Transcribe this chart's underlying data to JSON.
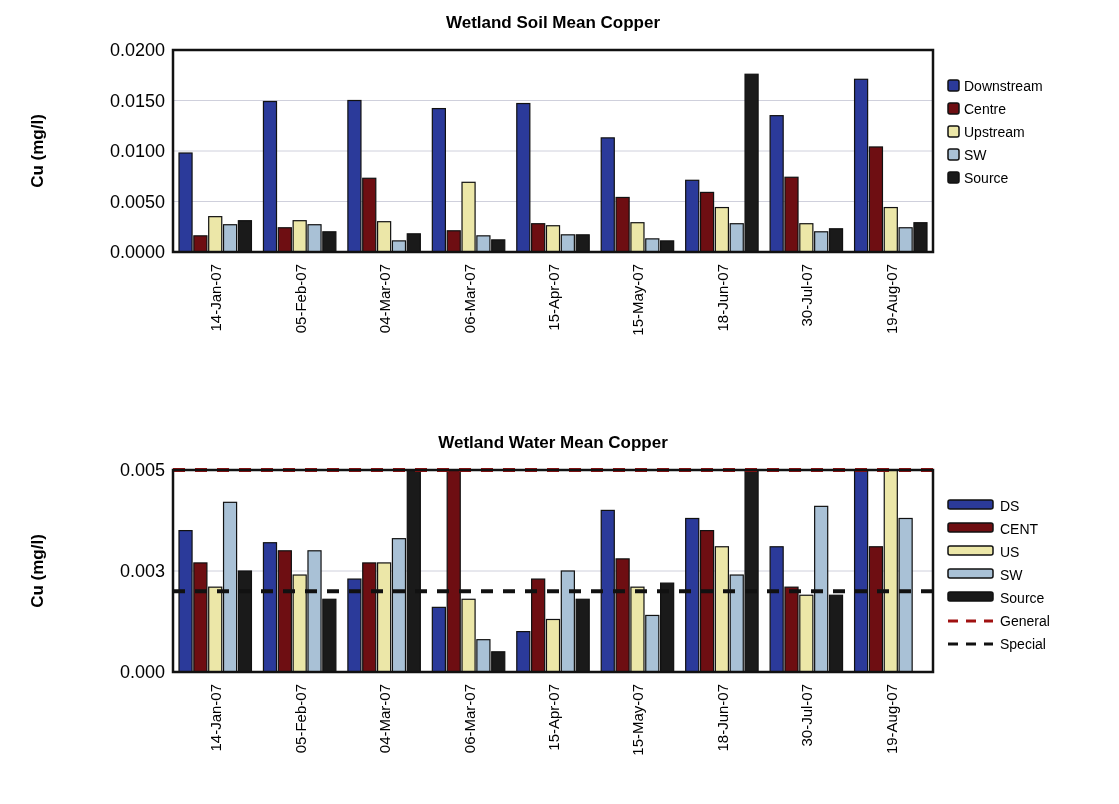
{
  "chart_data": [
    {
      "type": "bar",
      "title": "Wetland Soil Mean Copper",
      "ylabel": "Cu (mg/l)",
      "categories": [
        "14-Jan-07",
        "05-Feb-07",
        "04-Mar-07",
        "06-Mar-07",
        "15-Apr-07",
        "15-May-07",
        "18-Jun-07",
        "30-Jul-07",
        "19-Aug-07"
      ],
      "series": [
        {
          "name": "Downstream",
          "color": "#2b3a9a",
          "values": [
            0.0098,
            0.0149,
            0.015,
            0.0142,
            0.0147,
            0.0113,
            0.0071,
            0.0135,
            0.0171
          ]
        },
        {
          "name": "Centre",
          "color": "#6e0e12",
          "values": [
            0.0016,
            0.0024,
            0.0073,
            0.0021,
            0.0028,
            0.0054,
            0.0059,
            0.0074,
            0.0104
          ]
        },
        {
          "name": "Upstream",
          "color": "#ece7a8",
          "values": [
            0.0035,
            0.0031,
            0.003,
            0.0069,
            0.0026,
            0.0029,
            0.0044,
            0.0028,
            0.0044
          ]
        },
        {
          "name": "SW",
          "color": "#a9c1d6",
          "values": [
            0.0027,
            0.0027,
            0.0011,
            0.0016,
            0.0017,
            0.0013,
            0.0028,
            0.002,
            0.0024
          ]
        },
        {
          "name": "Source",
          "color": "#1a1a1a",
          "values": [
            0.0031,
            0.002,
            0.0018,
            0.0012,
            0.0017,
            0.0011,
            0.0176,
            0.0023,
            0.0029
          ]
        }
      ],
      "ylim": [
        0,
        0.02
      ],
      "yticks": [
        {
          "value": 0,
          "label": "0.0000"
        },
        {
          "value": 0.005,
          "label": "0.0050"
        },
        {
          "value": 0.01,
          "label": "0.0100"
        },
        {
          "value": 0.015,
          "label": "0.0150"
        },
        {
          "value": 0.02,
          "label": "0.0200"
        }
      ],
      "grid": "y",
      "legend": "right"
    },
    {
      "type": "bar",
      "title": "Wetland Water Mean Copper",
      "ylabel": "Cu (mg/l)",
      "categories": [
        "14-Jan-07",
        "05-Feb-07",
        "04-Mar-07",
        "06-Mar-07",
        "15-Apr-07",
        "15-May-07",
        "18-Jun-07",
        "30-Jul-07",
        "19-Aug-07"
      ],
      "series": [
        {
          "name": "DS",
          "color": "#2b3a9a",
          "values": [
            0.0035,
            0.0032,
            0.0023,
            0.0016,
            0.001,
            0.004,
            0.0038,
            0.0031,
            0.005
          ]
        },
        {
          "name": "CENT",
          "color": "#6e0e12",
          "values": [
            0.0027,
            0.003,
            0.0027,
            0.005,
            0.0023,
            0.0028,
            0.0035,
            0.0021,
            0.0031
          ]
        },
        {
          "name": "US",
          "color": "#ece7a8",
          "values": [
            0.0021,
            0.0024,
            0.0027,
            0.0018,
            0.0013,
            0.0021,
            0.0031,
            0.0019,
            0.005
          ]
        },
        {
          "name": "SW",
          "color": "#a9c1d6",
          "values": [
            0.0042,
            0.003,
            0.0033,
            0.0008,
            0.0025,
            0.0014,
            0.0024,
            0.0041,
            0.0038
          ]
        },
        {
          "name": "Source",
          "color": "#1a1a1a",
          "values": [
            0.0025,
            0.0018,
            0.005,
            0.0005,
            0.0018,
            0.0022,
            0.005,
            0.0019,
            null
          ]
        }
      ],
      "ref_lines": [
        {
          "axis": "y",
          "value": 0.005,
          "label": "General",
          "color": "#a01010",
          "line_style": "dashed"
        },
        {
          "axis": "y",
          "value": 0.002,
          "label": "Special",
          "color": "#111111",
          "line_style": "dashed"
        }
      ],
      "ylim": [
        0,
        0.005
      ],
      "yticks": [
        {
          "value": 0,
          "label": "0.000"
        },
        {
          "value": 0.0025,
          "label": "0.003"
        },
        {
          "value": 0.005,
          "label": "0.005"
        }
      ],
      "grid": "y",
      "legend": "right"
    }
  ]
}
